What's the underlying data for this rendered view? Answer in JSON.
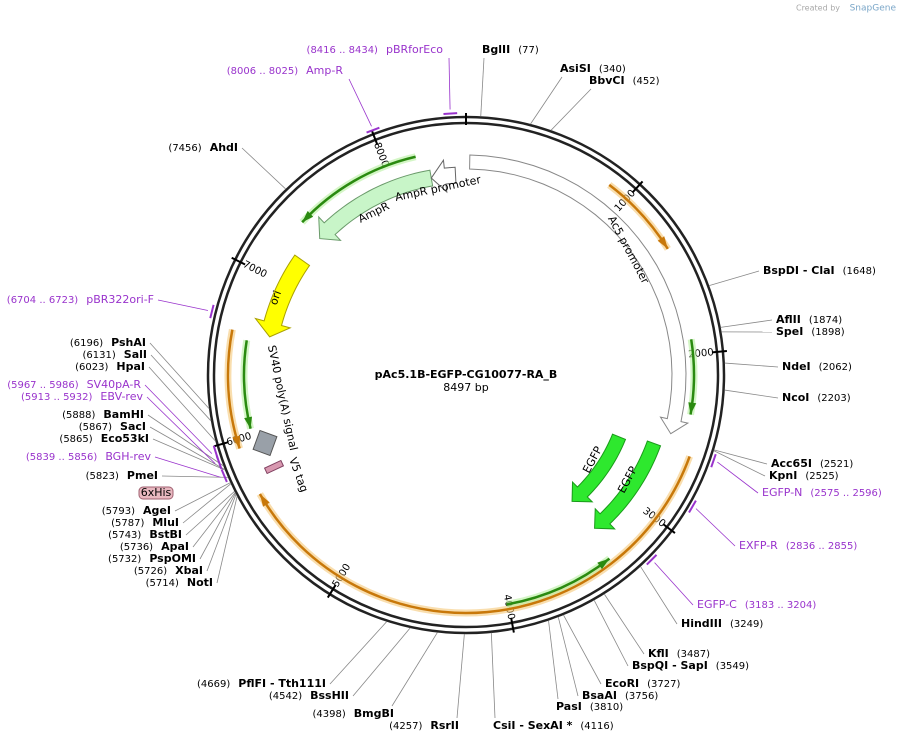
{
  "brand": {
    "prefix": "Created by",
    "name": "SnapGene"
  },
  "plasmid": {
    "name": "pAc5.1B-EGFP-CG10077-RA_B",
    "size": "8497 bp"
  },
  "ticks": [
    "1000",
    "2000",
    "3000",
    "4000",
    "5000",
    "6000",
    "7000",
    "8000"
  ],
  "sites": [
    {
      "name": "BglII",
      "position": "(77)"
    },
    {
      "name": "AsiSI",
      "position": "(340)"
    },
    {
      "name": "BbvCI",
      "position": "(452)"
    },
    {
      "name": "BspDI  - ClaI",
      "position": "(1648)"
    },
    {
      "name": "AflII",
      "position": "(1874)"
    },
    {
      "name": "SpeI",
      "position": "(1898)"
    },
    {
      "name": "NdeI",
      "position": "(2062)"
    },
    {
      "name": "NcoI",
      "position": "(2203)"
    },
    {
      "name": "Acc65I",
      "position": "(2521)"
    },
    {
      "name": "KpnI",
      "position": "(2525)"
    },
    {
      "name": "HindIII",
      "position": "(3249)"
    },
    {
      "name": "KflI",
      "position": "(3487)"
    },
    {
      "name": "BspQI  - SapI",
      "position": "(3549)"
    },
    {
      "name": "EcoRI",
      "position": "(3727)"
    },
    {
      "name": "BsaAI",
      "position": "(3756)"
    },
    {
      "name": "PasI",
      "position": "(3810)"
    },
    {
      "name": "CsiI  - SexAI *",
      "position": "(4116)"
    },
    {
      "name": "RsrII",
      "position": "(4257)"
    },
    {
      "name": "BmgBI",
      "position": "(4398)"
    },
    {
      "name": "BssHII",
      "position": "(4542)"
    },
    {
      "name": "PflFI  - Tth111I",
      "position": "(4669)"
    },
    {
      "name": "NotI",
      "position": "(5714)"
    },
    {
      "name": "XbaI",
      "position": "(5726)"
    },
    {
      "name": "PspOMI",
      "position": "(5732)"
    },
    {
      "name": "ApaI",
      "position": "(5736)"
    },
    {
      "name": "BstBI",
      "position": "(5743)"
    },
    {
      "name": "MluI",
      "position": "(5787)"
    },
    {
      "name": "AgeI",
      "position": "(5793)"
    },
    {
      "name": "PmeI",
      "position": "(5823)"
    },
    {
      "name": "Eco53kI",
      "position": "(5865)"
    },
    {
      "name": "SacI",
      "position": "(5867)"
    },
    {
      "name": "BamHI",
      "position": "(5888)"
    },
    {
      "name": "HpaI",
      "position": "(6023)"
    },
    {
      "name": "SalI",
      "position": "(6131)"
    },
    {
      "name": "PshAI",
      "position": "(6196)"
    },
    {
      "name": "AhdI",
      "position": "(7456)"
    }
  ],
  "primers": [
    {
      "name": "pBRforEco",
      "range": "(8416 .. 8434)"
    },
    {
      "name": "Amp-R",
      "range": "(8006 .. 8025)"
    },
    {
      "name": "pBR322ori-F",
      "range": "(6704 .. 6723)"
    },
    {
      "name": "SV40pA-R",
      "range": "(5967 .. 5986)"
    },
    {
      "name": "EBV-rev",
      "range": "(5913 .. 5932)"
    },
    {
      "name": "BGH-rev",
      "range": "(5839 .. 5856)"
    },
    {
      "name": "EGFP-N",
      "range": "(2575 .. 2596)"
    },
    {
      "name": "EXFP-R",
      "range": "(2836 .. 2855)"
    },
    {
      "name": "EGFP-C",
      "range": "(3183 .. 3204)"
    }
  ],
  "features": [
    "Ac5 promoter",
    "EGFP",
    "EGFP",
    "ori",
    "AmpR",
    "AmpR promoter",
    "SV40 poly(A) signal",
    "V5 tag",
    "6xHis"
  ]
}
